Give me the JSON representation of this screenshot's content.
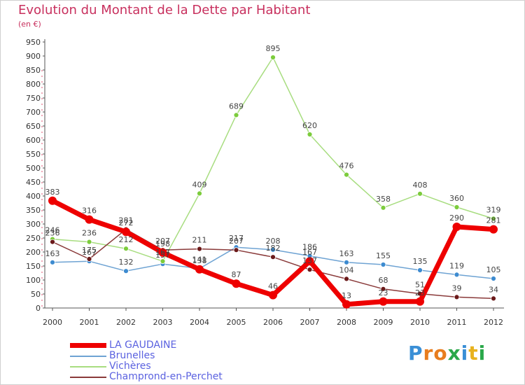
{
  "title": "Evolution du Montant de la Dette par Habitant",
  "subtitle": "(en €)",
  "logo": {
    "letters": [
      "P",
      "r",
      "o",
      "x",
      "i",
      "t",
      "i"
    ],
    "colors": [
      "#3a8fd6",
      "#e87d1e",
      "#e87d1e",
      "#2aa84a",
      "#3a8fd6",
      "#e8b21e",
      "#2aa84a"
    ]
  },
  "chart_data": {
    "type": "line",
    "x": [
      "2000",
      "2001",
      "2002",
      "2003",
      "2004",
      "2005",
      "2006",
      "2007",
      "2008",
      "2009",
      "2010",
      "2011",
      "2012"
    ],
    "ylim": [
      0,
      950
    ],
    "yticks": [
      "0",
      "50",
      "100",
      "150",
      "200",
      "250",
      "300",
      "350",
      "400",
      "450",
      "500",
      "550",
      "600",
      "650",
      "700",
      "750",
      "800",
      "850",
      "900",
      "950"
    ],
    "grid": false,
    "legend": "bottom-left",
    "series": [
      {
        "name": "LA GAUDAINE",
        "color": "#ee0000",
        "width": 7,
        "marker": "#ee0000",
        "markerR": 6,
        "values": [
          383,
          316,
          272,
          198,
          138,
          87,
          46,
          167,
          13,
          23,
          23,
          290,
          281
        ],
        "labels": [
          "383",
          "316",
          "272",
          "198",
          "138",
          "87",
          "46",
          "167",
          "13",
          "23",
          "23",
          "290",
          "281"
        ]
      },
      {
        "name": "Brunelles",
        "color": "#6ea3d3",
        "width": 1.5,
        "marker": "#3d8bd0",
        "markerR": 3.5,
        "values": [
          163,
          167,
          132,
          157,
          141,
          217,
          208,
          186,
          163,
          155,
          135,
          119,
          105
        ],
        "labels": [
          "163",
          "167",
          "132",
          "157",
          "141",
          "217",
          "208",
          "186",
          "163",
          "155",
          "135",
          "119",
          "105"
        ]
      },
      {
        "name": "Vichères",
        "color": "#a8dd80",
        "width": 1.5,
        "marker": "#7ccc3c",
        "markerR": 3.5,
        "values": [
          246,
          236,
          212,
          167,
          409,
          689,
          895,
          620,
          476,
          358,
          408,
          360,
          319
        ],
        "labels": [
          "246",
          "236",
          "212",
          "167",
          "409",
          "689",
          "895",
          "620",
          "476",
          "358",
          "408",
          "360",
          "319"
        ]
      },
      {
        "name": "Champrond-en-Perchet",
        "color": "#8a3a3a",
        "width": 1.5,
        "marker": "#6b1a1a",
        "markerR": 3.5,
        "values": [
          236,
          175,
          281,
          207,
          211,
          207,
          182,
          137,
          104,
          68,
          51,
          39,
          34
        ],
        "labels": [
          "236",
          "175",
          "281",
          "207",
          "211",
          "207",
          "182",
          "137",
          "104",
          "68",
          "51",
          "39",
          "34"
        ]
      }
    ]
  }
}
